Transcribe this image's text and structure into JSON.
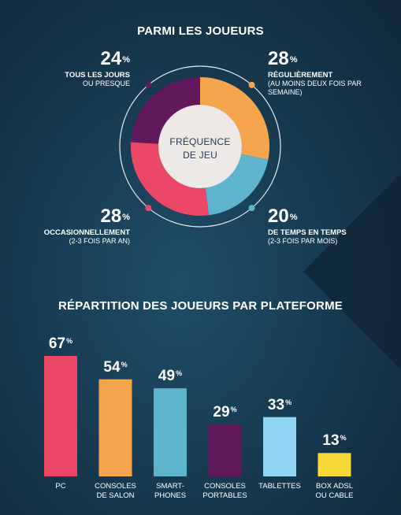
{
  "colors": {
    "background_light": "#1e4a63",
    "background_dark": "#0f2536",
    "pink": "#ea4866",
    "orange": "#f5a64d",
    "blue": "#5eb3cd",
    "purple": "#62195b",
    "light_blue": "#8fd4f2",
    "yellow": "#f6d937",
    "center_fill": "#ede9e6"
  },
  "chart_data": [
    {
      "type": "pie",
      "title": "PARMI LES JOUEURS",
      "center_label": [
        "FRÉQUENCE",
        "DE JEU"
      ],
      "slices": [
        {
          "label": "RÉGULIÈREMENT",
          "detail": [
            "(AU MOINS DEUX FOIS PAR",
            "SEMAINE)"
          ],
          "value": 28,
          "value_text": "28",
          "unit": "%",
          "color": "#f5a64d"
        },
        {
          "label": "DE TEMPS EN TEMPS",
          "detail": [
            "(2-3 FOIS PAR MOIS)"
          ],
          "value": 20,
          "value_text": "20",
          "unit": "%",
          "color": "#5eb3cd"
        },
        {
          "label": "OCCASIONNELLEMENT",
          "detail": [
            "(2-3 FOIS PAR AN)"
          ],
          "value": 28,
          "value_text": "28",
          "unit": "%",
          "color": "#ea4866"
        },
        {
          "label": "TOUS LES JOURS",
          "detail": [
            "OU PRESQUE"
          ],
          "value": 24,
          "value_text": "24",
          "unit": "%",
          "color": "#62195b"
        }
      ]
    },
    {
      "type": "bar",
      "title": "RÉPARTITION DES JOUEURS PAR PLATEFORME",
      "ylim": [
        0,
        67
      ],
      "bars": [
        {
          "category": [
            "PC"
          ],
          "value": 67,
          "value_text": "67",
          "unit": "%",
          "color": "#ea4866"
        },
        {
          "category": [
            "CONSOLES",
            "DE SALON"
          ],
          "value": 54,
          "value_text": "54",
          "unit": "%",
          "color": "#f5a64d"
        },
        {
          "category": [
            "SMART-",
            "PHONES"
          ],
          "value": 49,
          "value_text": "49",
          "unit": "%",
          "color": "#5eb3cd"
        },
        {
          "category": [
            "CONSOLES",
            "PORTABLES"
          ],
          "value": 29,
          "value_text": "29",
          "unit": "%",
          "color": "#62195b"
        },
        {
          "category": [
            "TABLETTES"
          ],
          "value": 33,
          "value_text": "33",
          "unit": "%",
          "color": "#8fd4f2"
        },
        {
          "category": [
            "BOX ADSL",
            "OU CABLE"
          ],
          "value": 13,
          "value_text": "13",
          "unit": "%",
          "color": "#f6d937"
        }
      ]
    }
  ]
}
